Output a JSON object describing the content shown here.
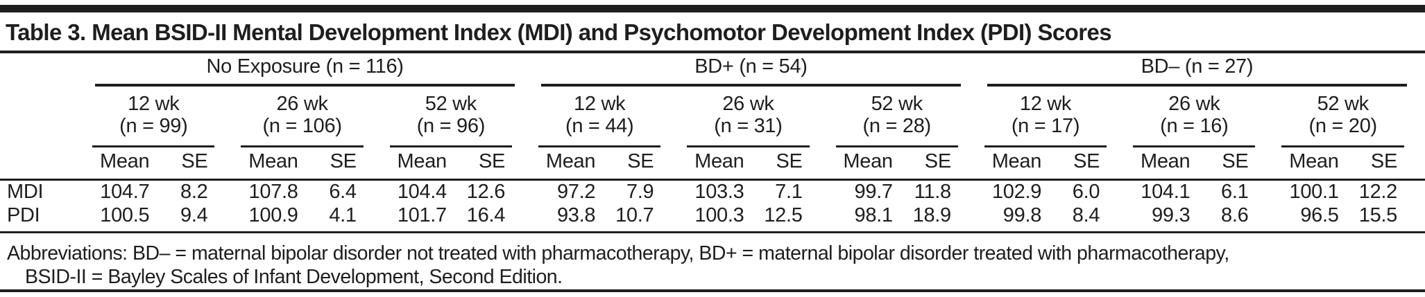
{
  "colors": {
    "ink": "#1e1e1e",
    "background": "#ffffff"
  },
  "title": "Table 3. Mean BSID-II Mental Development Index (MDI) and Psychomotor Development Index (PDI) Scores",
  "table": {
    "groups": [
      {
        "label": "No Exposure (n = 116)",
        "timepoints": [
          {
            "label": "12 wk",
            "n": "(n = 99)"
          },
          {
            "label": "26 wk",
            "n": "(n = 106)"
          },
          {
            "label": "52 wk",
            "n": "(n = 96)"
          }
        ]
      },
      {
        "label": "BD+ (n = 54)",
        "timepoints": [
          {
            "label": "12 wk",
            "n": "(n = 44)"
          },
          {
            "label": "26 wk",
            "n": "(n = 31)"
          },
          {
            "label": "52 wk",
            "n": "(n = 28)"
          }
        ]
      },
      {
        "label": "BD– (n = 27)",
        "timepoints": [
          {
            "label": "12 wk",
            "n": "(n = 17)"
          },
          {
            "label": "26 wk",
            "n": "(n = 16)"
          },
          {
            "label": "52 wk",
            "n": "(n = 20)"
          }
        ]
      }
    ],
    "subheaders": {
      "mean": "Mean",
      "se": "SE"
    },
    "rows": [
      {
        "label": "MDI",
        "values": [
          [
            "104.7",
            "8.2"
          ],
          [
            "107.8",
            "6.4"
          ],
          [
            "104.4",
            "12.6"
          ],
          [
            "97.2",
            "7.9"
          ],
          [
            "103.3",
            "7.1"
          ],
          [
            "99.7",
            "11.8"
          ],
          [
            "102.9",
            "6.0"
          ],
          [
            "104.1",
            "6.1"
          ],
          [
            "100.1",
            "12.2"
          ]
        ]
      },
      {
        "label": "PDI",
        "values": [
          [
            "100.5",
            "9.4"
          ],
          [
            "100.9",
            "4.1"
          ],
          [
            "101.7",
            "16.4"
          ],
          [
            "93.8",
            "10.7"
          ],
          [
            "100.3",
            "12.5"
          ],
          [
            "98.1",
            "18.9"
          ],
          [
            "99.8",
            "8.4"
          ],
          [
            "99.3",
            "8.6"
          ],
          [
            "96.5",
            "15.5"
          ]
        ]
      }
    ]
  },
  "footnote": {
    "line1": "Abbreviations: BD– = maternal bipolar disorder not treated with pharmacotherapy, BD+ = maternal bipolar disorder treated with pharmacotherapy,",
    "line2": "BSID-II = Bayley Scales of Infant Development, Second Edition."
  }
}
